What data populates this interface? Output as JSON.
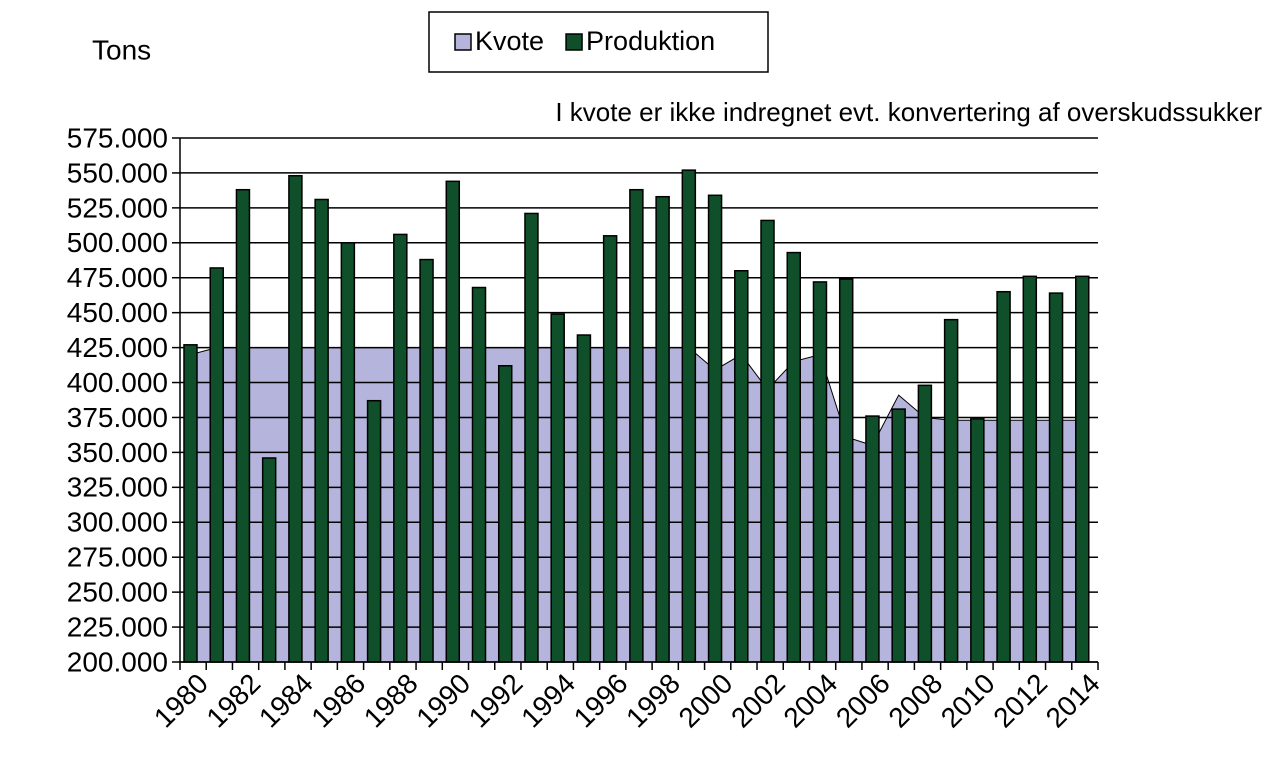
{
  "chart_data": {
    "type": "bar_area",
    "y_label": "Tons",
    "annotation": "I kvote er ikke indregnet evt. konvertering af overskudssukker",
    "categories": [
      "1980",
      null,
      "1982",
      null,
      "1984",
      null,
      "1986",
      null,
      "1988",
      null,
      "1990",
      null,
      "1992",
      null,
      "1994",
      null,
      "1996",
      null,
      "1998",
      null,
      "2000",
      null,
      "2002",
      null,
      "2004",
      null,
      "2006",
      null,
      "2008",
      null,
      "2010",
      null,
      "2012",
      null,
      "2014"
    ],
    "series": [
      {
        "name": "Kvote",
        "kind": "area",
        "color": "#b4b4dc",
        "values": [
          420000,
          425000,
          425000,
          425000,
          425000,
          425000,
          425000,
          425000,
          425000,
          425000,
          425000,
          425000,
          425000,
          425000,
          425000,
          425000,
          425000,
          425000,
          425000,
          425000,
          409000,
          420000,
          395000,
          415000,
          420000,
          361000,
          355000,
          391000,
          375000,
          373000,
          373000,
          373000,
          373000,
          373000,
          373000
        ]
      },
      {
        "name": "Produktion",
        "kind": "bar",
        "color": "#0f4f2a",
        "values": [
          427000,
          482000,
          538000,
          346000,
          548000,
          531000,
          500000,
          387000,
          506000,
          488000,
          544000,
          468000,
          412000,
          521000,
          449000,
          434000,
          505000,
          538000,
          533000,
          552000,
          534000,
          480000,
          516000,
          493000,
          472000,
          474000,
          376000,
          381000,
          398000,
          445000,
          374000,
          465000,
          476000,
          464000,
          476000
        ]
      }
    ],
    "ylim": [
      200000,
      575000
    ],
    "yticks": [
      {
        "value": 200000,
        "label": "200.000"
      },
      {
        "value": 225000,
        "label": "225.000"
      },
      {
        "value": 250000,
        "label": "250.000"
      },
      {
        "value": 275000,
        "label": "275.000"
      },
      {
        "value": 300000,
        "label": "300.000"
      },
      {
        "value": 325000,
        "label": "325.000"
      },
      {
        "value": 350000,
        "label": "350.000"
      },
      {
        "value": 375000,
        "label": "375.000"
      },
      {
        "value": 400000,
        "label": "400.000"
      },
      {
        "value": 425000,
        "label": "425.000"
      },
      {
        "value": 450000,
        "label": "450.000"
      },
      {
        "value": 475000,
        "label": "475.000"
      },
      {
        "value": 500000,
        "label": "500.000"
      },
      {
        "value": 525000,
        "label": "525.000"
      },
      {
        "value": 550000,
        "label": "550.000"
      },
      {
        "value": 575000,
        "label": "575.000"
      }
    ],
    "grid": true
  }
}
